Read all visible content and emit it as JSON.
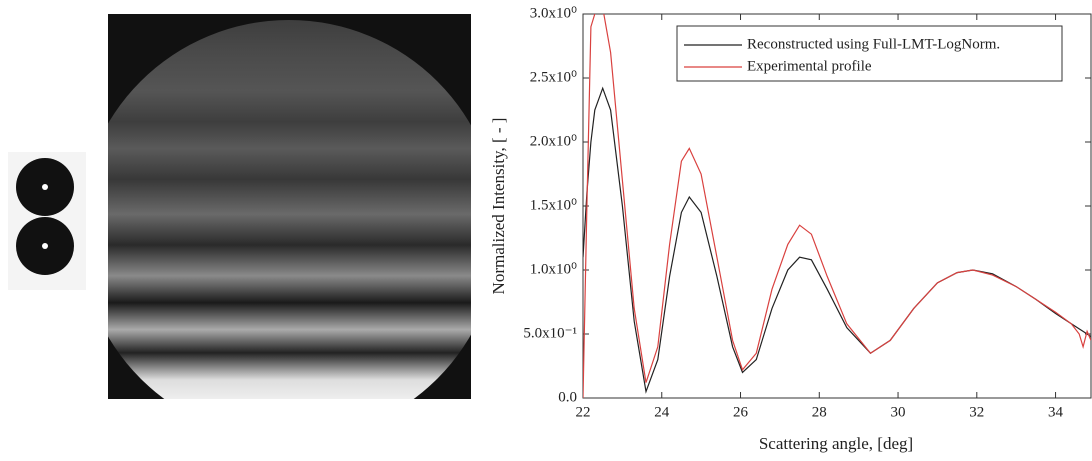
{
  "chart_data": {
    "type": "line",
    "x_label": "Scattering angle, [deg]",
    "y_label": "Normalized Intensity, [ - ]",
    "x": [
      22,
      22.1,
      22.2,
      22.3,
      22.5,
      22.7,
      23.0,
      23.3,
      23.6,
      23.9,
      24.2,
      24.5,
      24.7,
      25.0,
      25.4,
      25.8,
      26.05,
      26.4,
      26.8,
      27.2,
      27.5,
      27.8,
      28.2,
      28.7,
      29.3,
      29.8,
      30.4,
      31.0,
      31.5,
      31.9,
      32.4,
      33.0,
      33.5,
      34.0,
      34.4,
      34.6,
      34.7,
      34.8,
      34.9
    ],
    "series": [
      {
        "name": "Reconstructed using Full-LMT-LogNorm.",
        "color": "#222222",
        "values": [
          1.1,
          1.6,
          2.0,
          2.25,
          2.42,
          2.25,
          1.5,
          0.6,
          0.05,
          0.3,
          0.95,
          1.45,
          1.57,
          1.45,
          0.95,
          0.4,
          0.2,
          0.3,
          0.7,
          1.0,
          1.1,
          1.08,
          0.85,
          0.55,
          0.35,
          0.45,
          0.7,
          0.9,
          0.98,
          1.0,
          0.97,
          0.87,
          0.77,
          0.66,
          0.58,
          0.54,
          0.52,
          0.5,
          0.48
        ]
      },
      {
        "name": "Experimental profile",
        "color": "#d9413f",
        "values": [
          0,
          1.5,
          2.9,
          3.0,
          3.05,
          2.7,
          1.7,
          0.7,
          0.12,
          0.4,
          1.2,
          1.85,
          1.95,
          1.75,
          1.1,
          0.45,
          0.22,
          0.35,
          0.85,
          1.2,
          1.35,
          1.28,
          0.95,
          0.58,
          0.35,
          0.45,
          0.7,
          0.9,
          0.98,
          1.0,
          0.96,
          0.87,
          0.77,
          0.67,
          0.58,
          0.5,
          0.4,
          0.52,
          0.45
        ]
      }
    ],
    "xlim": [
      22,
      34.9
    ],
    "ylim": [
      0,
      3.0
    ],
    "xticks": [
      22,
      24,
      26,
      28,
      30,
      32,
      34
    ],
    "yticks": [
      {
        "value": 0,
        "label": "0.0"
      },
      {
        "value": 0.5,
        "label": "5.0x10⁻¹"
      },
      {
        "value": 1.0,
        "label": "1.0x10⁰"
      },
      {
        "value": 1.5,
        "label": "1.5x10⁰"
      },
      {
        "value": 2.0,
        "label": "2.0x10⁰"
      },
      {
        "value": 2.5,
        "label": "2.5x10⁰"
      },
      {
        "value": 3.0,
        "label": "3.0x10⁰"
      }
    ],
    "legend": "upper right"
  }
}
